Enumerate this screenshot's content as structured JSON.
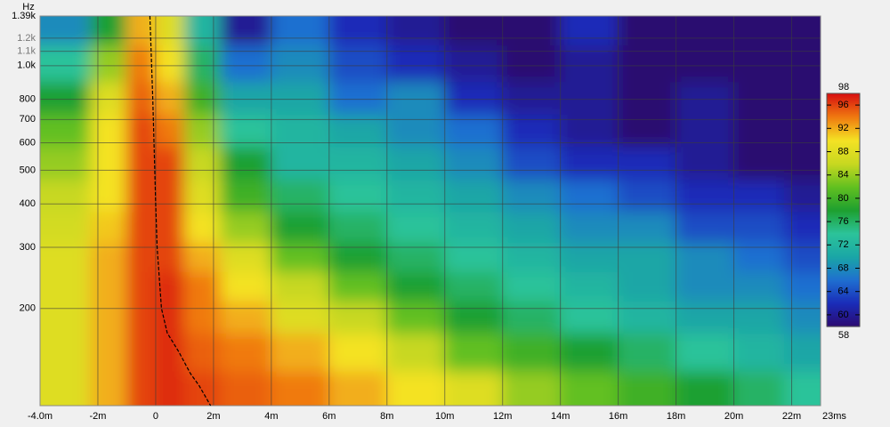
{
  "chart_data": {
    "type": "heatmap",
    "y_label": "Hz",
    "log_y": true,
    "grid": true,
    "xlim": [
      -4,
      23
    ],
    "ylim": [
      105,
      1390
    ],
    "xticks": [
      {
        "value": -4,
        "label": "-4.0m"
      },
      {
        "value": -2,
        "label": "-2m"
      },
      0,
      {
        "value": 2,
        "label": "2m"
      },
      {
        "value": 4,
        "label": "4m"
      },
      {
        "value": 6,
        "label": "6m"
      },
      {
        "value": 8,
        "label": "8m"
      },
      {
        "value": 10,
        "label": "10m"
      },
      {
        "value": 12,
        "label": "12m"
      },
      {
        "value": 14,
        "label": "14m"
      },
      {
        "value": 16,
        "label": "16m"
      },
      {
        "value": 18,
        "label": "18m"
      },
      {
        "value": 20,
        "label": "20m"
      },
      {
        "value": 22,
        "label": "22m"
      },
      {
        "value": 23,
        "label": "23ms"
      }
    ],
    "yticks": [
      {
        "value": 1390,
        "label": "1.39k"
      },
      {
        "value": 1200,
        "label": "1.2k"
      },
      {
        "value": 1100,
        "label": "1.1k"
      },
      {
        "value": 1000,
        "label": "1.0k"
      },
      800,
      700,
      600,
      500,
      400,
      300,
      200
    ],
    "x": [
      -3,
      -1.5,
      -0.5,
      0.5,
      1.5,
      3,
      5,
      7,
      9,
      11,
      13,
      15,
      17,
      19,
      21,
      22.5
    ],
    "y": [
      1300,
      1000,
      800,
      650,
      520,
      420,
      340,
      280,
      230,
      190,
      150,
      115
    ],
    "z": [
      [
        68,
        78,
        92,
        88,
        72,
        60,
        66,
        62,
        60,
        58,
        58,
        62,
        58,
        58,
        58,
        58
      ],
      [
        74,
        84,
        94,
        90,
        76,
        66,
        68,
        64,
        62,
        60,
        58,
        60,
        58,
        58,
        58,
        58
      ],
      [
        78,
        88,
        95,
        92,
        80,
        70,
        70,
        66,
        68,
        62,
        60,
        60,
        58,
        60,
        58,
        58
      ],
      [
        82,
        90,
        96,
        94,
        84,
        74,
        72,
        70,
        68,
        66,
        62,
        60,
        58,
        60,
        58,
        58
      ],
      [
        84,
        90,
        96,
        96,
        86,
        78,
        72,
        72,
        70,
        68,
        64,
        62,
        62,
        60,
        58,
        58
      ],
      [
        86,
        90,
        96,
        96,
        88,
        80,
        76,
        74,
        72,
        70,
        68,
        66,
        64,
        62,
        62,
        60
      ],
      [
        87,
        91,
        96,
        96,
        90,
        84,
        78,
        76,
        74,
        72,
        70,
        68,
        68,
        64,
        64,
        62
      ],
      [
        88,
        92,
        96,
        96,
        92,
        88,
        82,
        78,
        76,
        74,
        72,
        70,
        70,
        68,
        66,
        64
      ],
      [
        88,
        92,
        96,
        97,
        94,
        90,
        86,
        82,
        78,
        76,
        74,
        72,
        70,
        68,
        68,
        66
      ],
      [
        88,
        92,
        96,
        97,
        94,
        92,
        88,
        86,
        82,
        78,
        76,
        74,
        72,
        70,
        70,
        68
      ],
      [
        88,
        92,
        96,
        97,
        95,
        94,
        92,
        90,
        86,
        82,
        80,
        78,
        76,
        74,
        72,
        70
      ],
      [
        88,
        92,
        96,
        97,
        96,
        95,
        94,
        92,
        90,
        88,
        84,
        82,
        80,
        78,
        76,
        74
      ]
    ],
    "zlim": [
      58,
      98
    ],
    "zticks": [
      60,
      64,
      68,
      72,
      76,
      80,
      84,
      88,
      92,
      96
    ],
    "colorscale": [
      [
        58,
        "#2c0a70"
      ],
      [
        62,
        "#1a2cb8"
      ],
      [
        66,
        "#1f6fd0"
      ],
      [
        70,
        "#1aa6a6"
      ],
      [
        74,
        "#2cc39a"
      ],
      [
        78,
        "#1ea030"
      ],
      [
        82,
        "#62c020"
      ],
      [
        86,
        "#c8d820"
      ],
      [
        90,
        "#f4e224"
      ],
      [
        94,
        "#f07a10"
      ],
      [
        98,
        "#d81010"
      ]
    ],
    "cursor": {
      "x": [
        -0.2,
        -0.1,
        0,
        0.05,
        0.2,
        0.4,
        0.8,
        1.2,
        1.5,
        1.9
      ],
      "y": [
        1390,
        800,
        400,
        300,
        200,
        170,
        150,
        130,
        120,
        105
      ],
      "color": "#000000"
    }
  }
}
